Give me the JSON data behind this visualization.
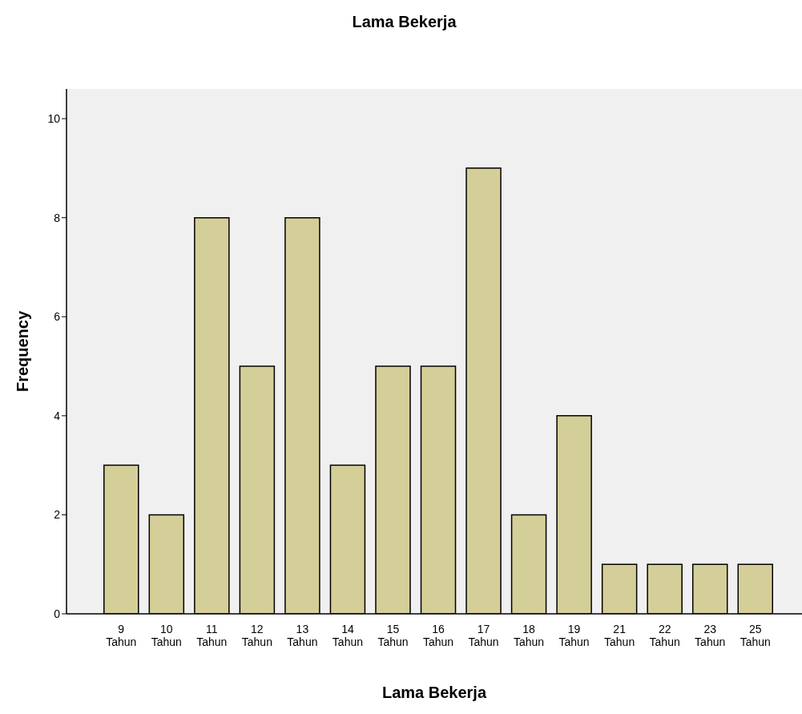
{
  "chart_data": {
    "type": "bar",
    "title": "Lama Bekerja",
    "xlabel": "Lama Bekerja",
    "ylabel": "Frequency",
    "categories": [
      "9 Tahun",
      "10 Tahun",
      "11 Tahun",
      "12 Tahun",
      "13 Tahun",
      "14 Tahun",
      "15 Tahun",
      "16 Tahun",
      "17 Tahun",
      "18 Tahun",
      "19 Tahun",
      "21 Tahun",
      "22 Tahun",
      "23 Tahun",
      "25 Tahun"
    ],
    "values": [
      3,
      2,
      8,
      5,
      8,
      3,
      5,
      5,
      9,
      2,
      4,
      1,
      1,
      1,
      1
    ],
    "color": "#d4cf98",
    "ylim": [
      0,
      10.6
    ],
    "yticks": [
      0,
      2,
      4,
      6,
      8,
      10
    ],
    "grid": false,
    "legend": false
  }
}
